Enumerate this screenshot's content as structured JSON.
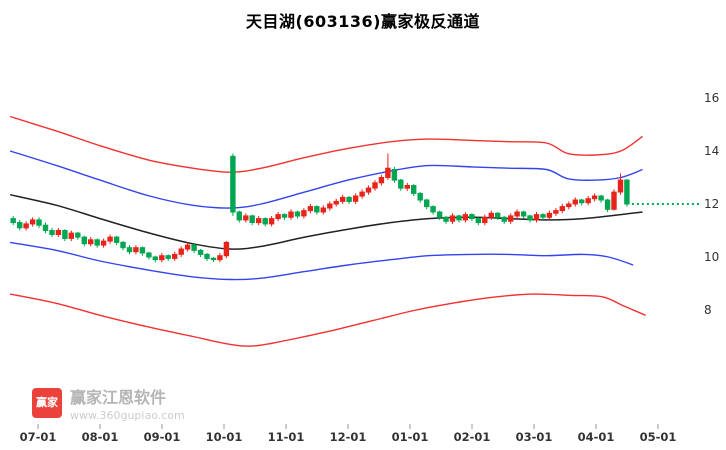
{
  "watermark": {
    "logo_text": "赢家",
    "name": "赢家江恩软件",
    "url": "www.360gupiao.com"
  },
  "chart_data": {
    "type": "candlestick",
    "title": "天目湖(603136)赢家极反通道",
    "x_ticks": [
      "07-01",
      "08-01",
      "09-01",
      "10-01",
      "11-01",
      "12-01",
      "01-01",
      "02-01",
      "03-01",
      "04-01",
      "05-01"
    ],
    "y_ticks": [
      8,
      10,
      12,
      14,
      16
    ],
    "ylim": [
      6.4,
      16.8
    ],
    "grid": "off",
    "legend": "none",
    "x_start": -0.4,
    "x_step": 0.1042,
    "colors": {
      "up": "#e8231a",
      "down": "#00a651",
      "channel_red": "#f23030",
      "channel_blue": "#3344ee",
      "channel_mid": "#222222",
      "target_green": "#00b050",
      "axis_text": "#333333"
    },
    "candles": [
      [
        11.45,
        11.55,
        11.2,
        11.3
      ],
      [
        11.3,
        11.4,
        11.0,
        11.1
      ],
      [
        11.1,
        11.35,
        11.0,
        11.25
      ],
      [
        11.25,
        11.5,
        11.15,
        11.4
      ],
      [
        11.4,
        11.5,
        11.1,
        11.2
      ],
      [
        11.2,
        11.3,
        10.9,
        11.0
      ],
      [
        11.0,
        11.1,
        10.75,
        10.85
      ],
      [
        10.85,
        11.1,
        10.75,
        11.0
      ],
      [
        11.0,
        11.05,
        10.6,
        10.7
      ],
      [
        10.7,
        11.0,
        10.6,
        10.9
      ],
      [
        10.9,
        10.95,
        10.65,
        10.75
      ],
      [
        10.75,
        10.8,
        10.4,
        10.5
      ],
      [
        10.5,
        10.75,
        10.4,
        10.65
      ],
      [
        10.65,
        10.7,
        10.35,
        10.45
      ],
      [
        10.45,
        10.7,
        10.35,
        10.6
      ],
      [
        10.6,
        10.85,
        10.5,
        10.75
      ],
      [
        10.75,
        10.8,
        10.45,
        10.55
      ],
      [
        10.55,
        10.6,
        10.25,
        10.35
      ],
      [
        10.35,
        10.45,
        10.1,
        10.2
      ],
      [
        10.2,
        10.45,
        10.1,
        10.35
      ],
      [
        10.35,
        10.4,
        10.05,
        10.15
      ],
      [
        10.15,
        10.2,
        9.9,
        10.0
      ],
      [
        10.0,
        10.05,
        9.8,
        9.9
      ],
      [
        9.9,
        10.15,
        9.8,
        10.05
      ],
      [
        10.05,
        10.1,
        9.85,
        9.95
      ],
      [
        9.95,
        10.2,
        9.85,
        10.1
      ],
      [
        10.1,
        10.4,
        10.0,
        10.3
      ],
      [
        10.3,
        10.55,
        10.2,
        10.45
      ],
      [
        10.45,
        10.5,
        10.15,
        10.25
      ],
      [
        10.25,
        10.3,
        10.0,
        10.1
      ],
      [
        10.1,
        10.15,
        9.85,
        9.95
      ],
      [
        9.95,
        10.0,
        9.8,
        9.9
      ],
      [
        9.9,
        10.15,
        9.8,
        10.05
      ],
      [
        10.05,
        10.6,
        9.95,
        10.55
      ],
      [
        13.8,
        13.9,
        11.55,
        11.7
      ],
      [
        11.7,
        11.75,
        11.3,
        11.4
      ],
      [
        11.4,
        11.65,
        11.3,
        11.55
      ],
      [
        11.55,
        11.6,
        11.2,
        11.3
      ],
      [
        11.3,
        11.55,
        11.2,
        11.45
      ],
      [
        11.45,
        11.5,
        11.15,
        11.25
      ],
      [
        11.25,
        11.55,
        11.15,
        11.45
      ],
      [
        11.45,
        11.7,
        11.35,
        11.6
      ],
      [
        11.6,
        11.65,
        11.4,
        11.5
      ],
      [
        11.5,
        11.8,
        11.4,
        11.7
      ],
      [
        11.7,
        11.75,
        11.45,
        11.55
      ],
      [
        11.55,
        11.85,
        11.45,
        11.75
      ],
      [
        11.75,
        12.0,
        11.65,
        11.9
      ],
      [
        11.9,
        11.95,
        11.6,
        11.7
      ],
      [
        11.7,
        11.95,
        11.6,
        11.85
      ],
      [
        11.85,
        12.1,
        11.75,
        12.0
      ],
      [
        12.0,
        12.2,
        11.9,
        12.1
      ],
      [
        12.1,
        12.35,
        12.0,
        12.25
      ],
      [
        12.25,
        12.3,
        12.0,
        12.1
      ],
      [
        12.1,
        12.4,
        12.0,
        12.3
      ],
      [
        12.3,
        12.55,
        12.2,
        12.45
      ],
      [
        12.45,
        12.7,
        12.35,
        12.6
      ],
      [
        12.6,
        12.9,
        12.5,
        12.8
      ],
      [
        12.8,
        13.1,
        12.7,
        13.0
      ],
      [
        13.0,
        13.9,
        12.9,
        13.35
      ],
      [
        13.3,
        13.4,
        12.8,
        12.9
      ],
      [
        12.9,
        12.95,
        12.5,
        12.6
      ],
      [
        12.6,
        12.8,
        12.5,
        12.7
      ],
      [
        12.7,
        12.75,
        12.3,
        12.4
      ],
      [
        12.4,
        12.45,
        12.05,
        12.15
      ],
      [
        12.15,
        12.2,
        11.8,
        11.9
      ],
      [
        11.9,
        11.95,
        11.6,
        11.7
      ],
      [
        11.7,
        11.75,
        11.4,
        11.5
      ],
      [
        11.5,
        11.55,
        11.25,
        11.35
      ],
      [
        11.35,
        11.65,
        11.25,
        11.55
      ],
      [
        11.55,
        11.6,
        11.3,
        11.4
      ],
      [
        11.4,
        11.7,
        11.3,
        11.6
      ],
      [
        11.6,
        11.65,
        11.35,
        11.45
      ],
      [
        11.45,
        11.5,
        11.2,
        11.3
      ],
      [
        11.3,
        11.6,
        11.2,
        11.5
      ],
      [
        11.5,
        11.75,
        11.4,
        11.65
      ],
      [
        11.65,
        11.7,
        11.4,
        11.5
      ],
      [
        11.5,
        11.55,
        11.25,
        11.35
      ],
      [
        11.35,
        11.65,
        11.25,
        11.55
      ],
      [
        11.55,
        11.8,
        11.45,
        11.7
      ],
      [
        11.7,
        11.75,
        11.45,
        11.55
      ],
      [
        11.55,
        11.6,
        11.3,
        11.4
      ],
      [
        11.4,
        11.7,
        11.3,
        11.6
      ],
      [
        11.6,
        11.65,
        11.4,
        11.5
      ],
      [
        11.5,
        11.75,
        11.4,
        11.65
      ],
      [
        11.65,
        11.85,
        11.55,
        11.75
      ],
      [
        11.75,
        12.0,
        11.65,
        11.9
      ],
      [
        11.9,
        12.1,
        11.8,
        12.0
      ],
      [
        12.0,
        12.25,
        11.9,
        12.15
      ],
      [
        12.15,
        12.2,
        11.95,
        12.05
      ],
      [
        12.05,
        12.3,
        11.95,
        12.2
      ],
      [
        12.2,
        12.4,
        12.1,
        12.3
      ],
      [
        12.3,
        12.35,
        12.05,
        12.15
      ],
      [
        12.15,
        12.2,
        11.7,
        11.8
      ],
      [
        11.8,
        12.55,
        11.75,
        12.45
      ],
      [
        12.45,
        13.15,
        12.35,
        12.9
      ],
      [
        12.9,
        12.95,
        11.9,
        12.0
      ]
    ],
    "lines": [
      {
        "name": "upper-red-channel-line",
        "color": "#f23030",
        "width": 1.4,
        "points": [
          [
            -0.45,
            15.3
          ],
          [
            0.3,
            14.75
          ],
          [
            1.0,
            14.2
          ],
          [
            1.8,
            13.65
          ],
          [
            2.5,
            13.35
          ],
          [
            3.1,
            13.2
          ],
          [
            3.6,
            13.35
          ],
          [
            4.3,
            13.75
          ],
          [
            5.0,
            14.1
          ],
          [
            5.7,
            14.35
          ],
          [
            6.3,
            14.45
          ],
          [
            7.0,
            14.4
          ],
          [
            7.6,
            14.35
          ],
          [
            8.2,
            14.3
          ],
          [
            8.55,
            13.9
          ],
          [
            9.0,
            13.85
          ],
          [
            9.4,
            14.0
          ],
          [
            9.75,
            14.55
          ]
        ]
      },
      {
        "name": "upper-blue-channel-line",
        "color": "#3344ee",
        "width": 1.4,
        "points": [
          [
            -0.45,
            14.0
          ],
          [
            0.3,
            13.45
          ],
          [
            1.0,
            12.9
          ],
          [
            1.8,
            12.3
          ],
          [
            2.5,
            11.95
          ],
          [
            3.1,
            11.85
          ],
          [
            3.6,
            12.0
          ],
          [
            4.3,
            12.45
          ],
          [
            5.0,
            12.9
          ],
          [
            5.7,
            13.25
          ],
          [
            6.3,
            13.45
          ],
          [
            7.0,
            13.4
          ],
          [
            7.6,
            13.35
          ],
          [
            8.2,
            13.3
          ],
          [
            8.55,
            12.95
          ],
          [
            9.0,
            12.9
          ],
          [
            9.4,
            13.0
          ],
          [
            9.75,
            13.3
          ]
        ]
      },
      {
        "name": "middle-black-trend-line",
        "color": "#222222",
        "width": 1.5,
        "points": [
          [
            -0.45,
            12.35
          ],
          [
            0.3,
            11.95
          ],
          [
            1.0,
            11.45
          ],
          [
            1.8,
            10.9
          ],
          [
            2.5,
            10.5
          ],
          [
            3.1,
            10.3
          ],
          [
            3.6,
            10.4
          ],
          [
            4.3,
            10.75
          ],
          [
            5.0,
            11.05
          ],
          [
            5.7,
            11.3
          ],
          [
            6.3,
            11.45
          ],
          [
            7.0,
            11.5
          ],
          [
            7.6,
            11.45
          ],
          [
            8.2,
            11.4
          ],
          [
            8.8,
            11.45
          ],
          [
            9.4,
            11.6
          ],
          [
            9.75,
            11.7
          ]
        ]
      },
      {
        "name": "lower-blue-channel-line",
        "color": "#3344ee",
        "width": 1.4,
        "points": [
          [
            -0.45,
            10.55
          ],
          [
            0.3,
            10.25
          ],
          [
            1.0,
            9.85
          ],
          [
            1.8,
            9.5
          ],
          [
            2.5,
            9.25
          ],
          [
            3.1,
            9.15
          ],
          [
            3.6,
            9.2
          ],
          [
            4.3,
            9.45
          ],
          [
            5.0,
            9.7
          ],
          [
            5.7,
            9.9
          ],
          [
            6.3,
            10.05
          ],
          [
            7.0,
            10.1
          ],
          [
            7.6,
            10.1
          ],
          [
            8.2,
            10.05
          ],
          [
            8.8,
            10.1
          ],
          [
            9.2,
            10.0
          ],
          [
            9.6,
            9.7
          ]
        ]
      },
      {
        "name": "lower-red-channel-line",
        "color": "#f23030",
        "width": 1.4,
        "points": [
          [
            -0.45,
            8.6
          ],
          [
            0.3,
            8.25
          ],
          [
            1.0,
            7.8
          ],
          [
            1.8,
            7.35
          ],
          [
            2.5,
            7.0
          ],
          [
            3.1,
            6.7
          ],
          [
            3.5,
            6.65
          ],
          [
            4.0,
            6.85
          ],
          [
            4.7,
            7.2
          ],
          [
            5.4,
            7.6
          ],
          [
            6.1,
            8.0
          ],
          [
            6.8,
            8.3
          ],
          [
            7.4,
            8.5
          ],
          [
            8.0,
            8.6
          ],
          [
            8.6,
            8.55
          ],
          [
            9.1,
            8.5
          ],
          [
            9.45,
            8.15
          ],
          [
            9.8,
            7.8
          ]
        ]
      }
    ],
    "target_line": {
      "value": 12.0,
      "color": "#00b050",
      "style": "dashed"
    }
  }
}
